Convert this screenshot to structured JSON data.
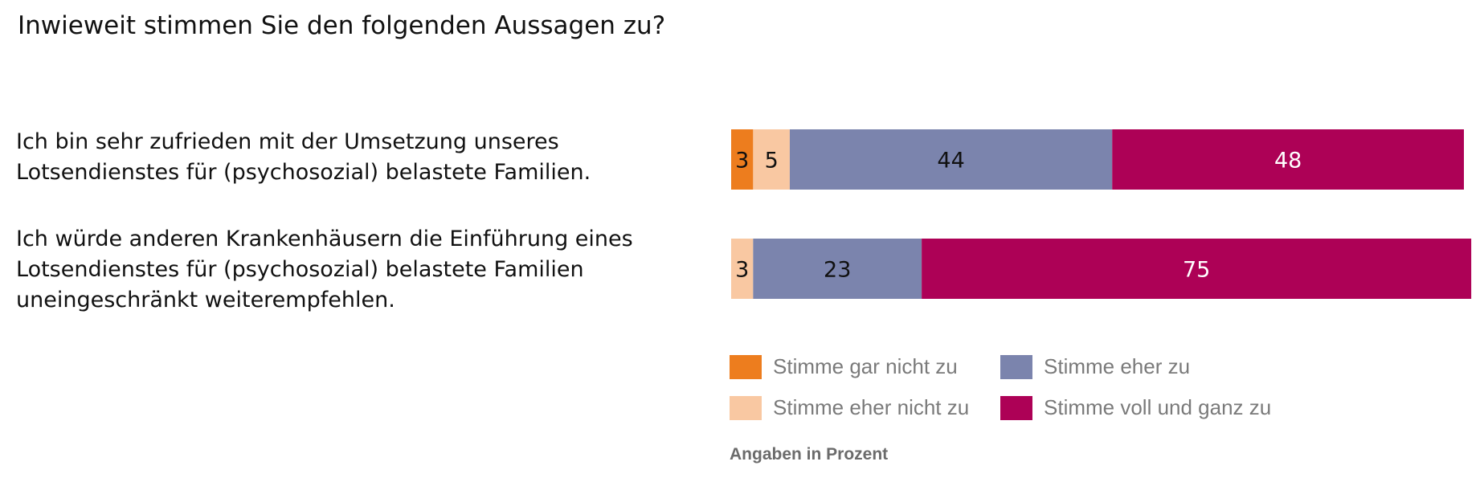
{
  "title": "Inwieweit stimmen Sie den folgenden Aussagen zu?",
  "note": "Angaben in Prozent",
  "chart_data": {
    "type": "bar",
    "orientation": "horizontal",
    "stacked": true,
    "categories": [
      "Ich bin sehr zufrieden mit der Umsetzung unseres\nLotsendienstes für (psychosozial) belastete Familien.",
      "Ich würde anderen Krankenhäusern die Einführung eines\nLotsendienstes für (psychosozial) belastete Familien\nuneingeschränkt weiterempfehlen."
    ],
    "series": [
      {
        "name": "Stimme gar nicht zu",
        "color": "#ed7d1e",
        "label_color": "#111111",
        "values": [
          3,
          0
        ]
      },
      {
        "name": "Stimme eher nicht zu",
        "color": "#f9c8a2",
        "label_color": "#111111",
        "values": [
          5,
          3
        ]
      },
      {
        "name": "Stimme eher zu",
        "color": "#7b84ad",
        "label_color": "#111111",
        "values": [
          44,
          23
        ]
      },
      {
        "name": "Stimme voll und ganz zu",
        "color": "#ad0156",
        "label_color": "#ffffff",
        "values": [
          48,
          75
        ]
      }
    ],
    "xlim": [
      0,
      100
    ],
    "grid": false,
    "legend_position": "bottom"
  }
}
